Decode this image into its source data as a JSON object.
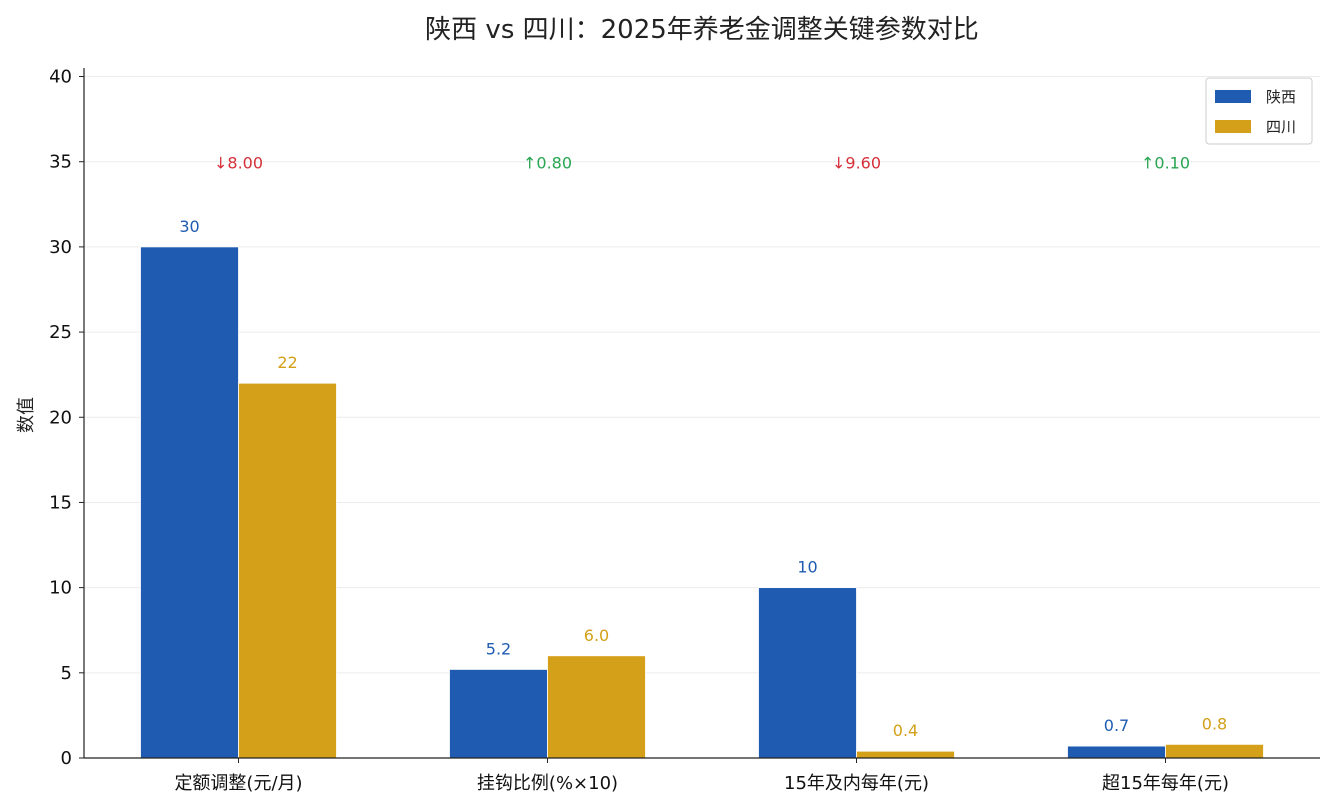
{
  "chart_data": {
    "type": "bar",
    "title": "陕西 vs 四川：2025年养老金调整关键参数对比",
    "ylabel": "数值",
    "ylim": [
      0,
      40.5
    ],
    "yticks": [
      0,
      5,
      10,
      15,
      20,
      25,
      30,
      35,
      40
    ],
    "grid": true,
    "legend_position": "top-right",
    "categories": [
      "定额调整(元/月)",
      "挂钩比例(%×10)",
      "15年及内每年(元)",
      "超15年每年(元)"
    ],
    "series": [
      {
        "name": "陕西",
        "color": "#1f5bb0",
        "values": [
          30,
          5.2,
          10,
          0.7
        ],
        "labels": [
          "30",
          "5.2",
          "10",
          "0.7"
        ]
      },
      {
        "name": "四川",
        "color": "#d4a019",
        "values": [
          22,
          6.0,
          0.4,
          0.8
        ],
        "labels": [
          "22",
          "6.0",
          "0.4",
          "0.8"
        ]
      }
    ],
    "annotations": [
      {
        "category": "定额调整(元/月)",
        "text": "↓8.00",
        "color": "#d6303a"
      },
      {
        "category": "挂钩比例(%×10)",
        "text": "↑0.80",
        "color": "#27a551"
      },
      {
        "category": "15年及内每年(元)",
        "text": "↓9.60",
        "color": "#d6303a"
      },
      {
        "category": "超15年每年(元)",
        "text": "↑0.10",
        "color": "#27a551"
      }
    ]
  }
}
